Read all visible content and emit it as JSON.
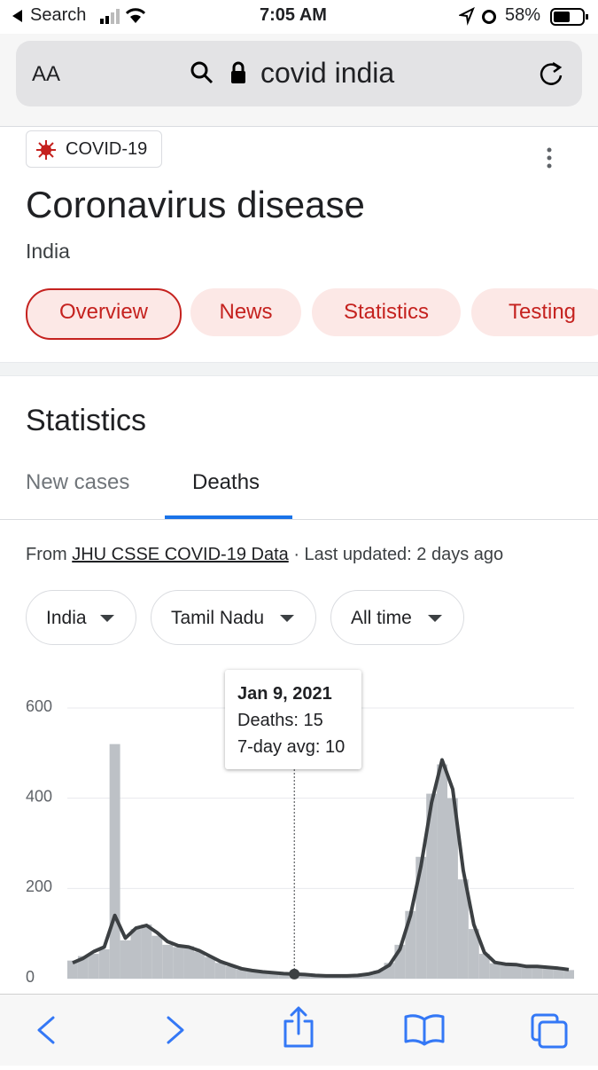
{
  "status_bar": {
    "back": "Search",
    "time": "7:05 AM",
    "battery": "58%"
  },
  "address_bar": {
    "text_size": "AA",
    "query": "covid india"
  },
  "header": {
    "chip": "COVID-19",
    "title": "Coronavirus disease",
    "subtitle": "India",
    "tabs": [
      "Overview",
      "News",
      "Statistics",
      "Testing"
    ]
  },
  "statistics": {
    "heading": "Statistics",
    "tabs": [
      "New cases",
      "Deaths"
    ],
    "source_prefix": "From",
    "source_link": "JHU CSSE COVID-19 Data",
    "updated": "· Last updated: 2 days ago",
    "filters": [
      "India",
      "Tamil Nadu",
      "All time"
    ]
  },
  "chart_data": {
    "type": "bar",
    "tooltip": {
      "date": "Jan 9, 2021",
      "deaths": "Deaths: 15",
      "avg": "7-day avg: 10"
    },
    "categories": [
      null,
      null,
      null,
      null,
      null,
      null,
      null,
      null,
      null,
      null,
      null,
      null,
      null,
      null,
      null,
      null,
      null,
      null,
      null,
      null,
      null,
      null,
      null,
      null,
      null,
      null,
      null,
      null,
      null,
      null,
      null,
      null,
      null,
      null,
      null,
      null,
      null,
      null,
      null,
      null,
      null,
      null,
      null,
      null,
      null,
      null,
      null,
      null
    ],
    "series": [
      {
        "type": "bar",
        "color": "#bdc1c6",
        "values": [
          40,
          50,
          55,
          65,
          520,
          85,
          110,
          120,
          95,
          75,
          70,
          72,
          60,
          48,
          35,
          28,
          20,
          17,
          14,
          12,
          11,
          15,
          8,
          7,
          6,
          5,
          6,
          7,
          11,
          18,
          35,
          75,
          150,
          270,
          410,
          475,
          400,
          220,
          110,
          55,
          34,
          30,
          30,
          26,
          26,
          24,
          22,
          19
        ]
      },
      {
        "type": "line",
        "color": "#3c4043",
        "values": [
          35,
          45,
          60,
          70,
          140,
          90,
          112,
          118,
          102,
          82,
          73,
          70,
          62,
          50,
          38,
          30,
          22,
          18,
          15,
          13,
          11,
          10,
          9,
          7,
          6,
          6,
          6,
          7,
          10,
          16,
          30,
          65,
          140,
          250,
          390,
          485,
          420,
          240,
          120,
          58,
          36,
          32,
          31,
          27,
          27,
          25,
          23,
          20
        ]
      }
    ],
    "highlight_index": 21,
    "ylim": [
      0,
      600
    ],
    "yticks": [
      0,
      200,
      400,
      600
    ],
    "grid": true
  }
}
